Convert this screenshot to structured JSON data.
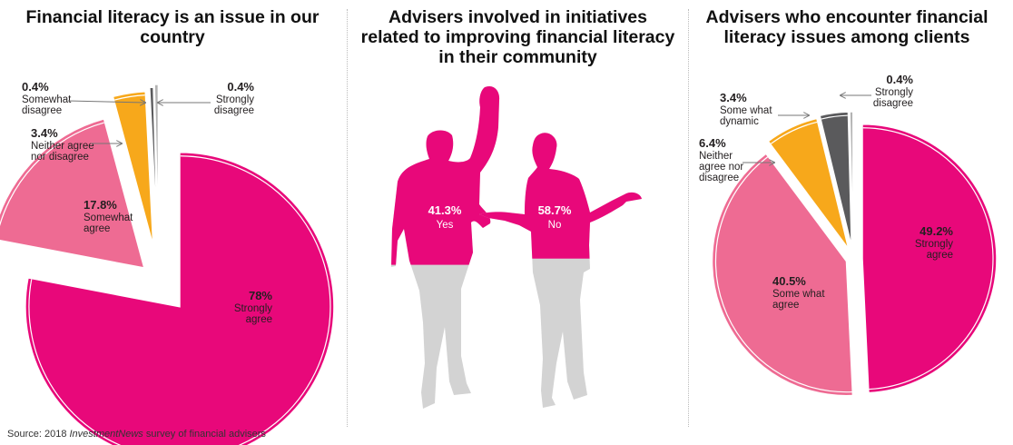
{
  "titles": {
    "chart1": [
      "Financial literacy is an issue in our",
      "country"
    ],
    "chart2": [
      "Advisers involved in initiatives",
      "related to improving financial literacy",
      "in their community"
    ],
    "chart3": [
      "Advisers who encounter financial",
      "literacy issues among clients"
    ]
  },
  "source": {
    "prefix": "Source: 2018 ",
    "publication": "InvestmentNews",
    "suffix": " survey of financial advisers"
  },
  "colors": {
    "strongly_agree": "#e8087a",
    "somewhat_agree": "#ee6b93",
    "neither": "#f7a81b",
    "somewhat_disagree": "#5a5a5c",
    "strongly_disagree": "#b3b3b3",
    "silhouette_gray": "#d3d3d3"
  },
  "chart_data": [
    {
      "type": "pie",
      "title": "Financial literacy is an issue in our country",
      "slices": [
        {
          "label": "Strongly agree",
          "value": 78,
          "display": "78%",
          "lines": [
            "Strongly",
            "agree"
          ]
        },
        {
          "label": "Somewhat agree",
          "value": 17.8,
          "display": "17.8%",
          "lines": [
            "Somewhat",
            "agree"
          ]
        },
        {
          "label": "Neither agree nor disagree",
          "value": 3.4,
          "display": "3.4%",
          "lines": [
            "Neither agree",
            "nor disagree"
          ]
        },
        {
          "label": "Somewhat disagree",
          "value": 0.4,
          "display": "0.4%",
          "lines": [
            "Somewhat",
            "disagree"
          ]
        },
        {
          "label": "Strongly disagree",
          "value": 0.4,
          "display": "0.4%",
          "lines": [
            "Strongly",
            "disagree"
          ]
        }
      ]
    },
    {
      "type": "pictogram",
      "title": "Advisers involved in initiatives related to improving financial literacy in their community",
      "categories": [
        "Yes",
        "No"
      ],
      "values": [
        41.3,
        58.7
      ],
      "display": [
        "41.3%",
        "58.7%"
      ]
    },
    {
      "type": "pie",
      "title": "Advisers who encounter financial literacy issues among clients",
      "slices": [
        {
          "label": "Strongly agree",
          "value": 49.2,
          "display": "49.2%",
          "lines": [
            "Strongly",
            "agree"
          ]
        },
        {
          "label": "Some what agree",
          "value": 40.5,
          "display": "40.5%",
          "lines": [
            "Some what",
            "agree"
          ]
        },
        {
          "label": "Neither agree nor disagree",
          "value": 6.4,
          "display": "6.4%",
          "lines": [
            "Neither",
            "agree nor",
            "disagree"
          ]
        },
        {
          "label": "Some what dynamic",
          "value": 3.4,
          "display": "3.4%",
          "lines": [
            "Some what",
            "dynamic"
          ]
        },
        {
          "label": "Strongly disagree",
          "value": 0.4,
          "display": "0.4%",
          "lines": [
            "Strongly",
            "disagree"
          ]
        }
      ]
    }
  ]
}
